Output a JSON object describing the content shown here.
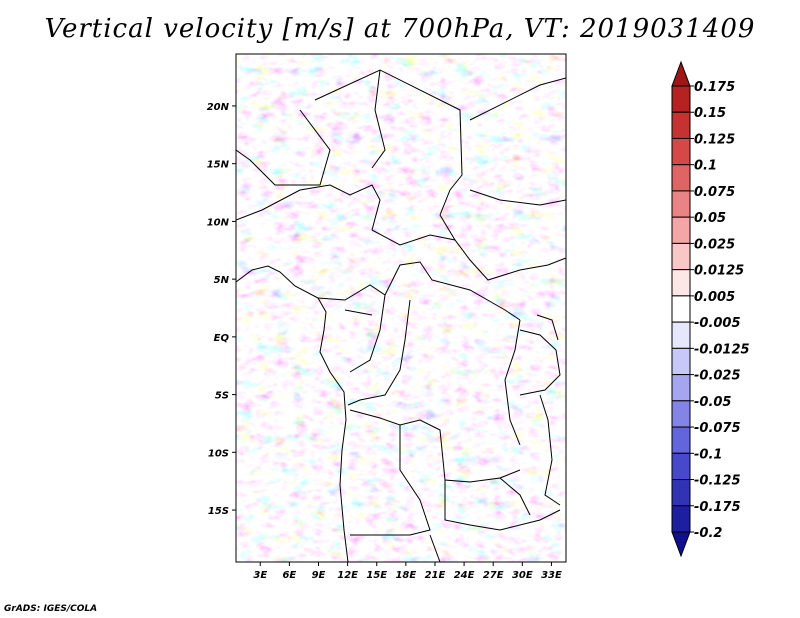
{
  "title": "Vertical velocity [m/s] at 700hPa, VT: 2019031409",
  "credit": "GrADS: IGES/COLA",
  "map": {
    "lat_labels": [
      "20N",
      "15N",
      "10N",
      "5N",
      "EQ",
      "5S",
      "10S",
      "15S"
    ],
    "lat_values": [
      20,
      15,
      10,
      5,
      0,
      -5,
      -10,
      -15
    ],
    "lon_labels": [
      "3E",
      "6E",
      "9E",
      "12E",
      "15E",
      "18E",
      "21E",
      "24E",
      "27E",
      "30E",
      "33E"
    ],
    "lon_values": [
      3,
      6,
      9,
      12,
      15,
      18,
      21,
      24,
      27,
      30,
      33
    ],
    "lon_range": [
      0.5,
      34.5
    ],
    "lat_range": [
      -19.5,
      24.5
    ]
  },
  "colorbar": {
    "labels": [
      "0.175",
      "0.15",
      "0.125",
      "0.1",
      "0.075",
      "0.05",
      "0.025",
      "0.0125",
      "0.005",
      "-0.005",
      "-0.0125",
      "-0.025",
      "-0.05",
      "-0.075",
      "-0.1",
      "-0.125",
      "-0.175",
      "-0.2"
    ],
    "colors": [
      "#a01616",
      "#b42222",
      "#c43232",
      "#d44848",
      "#e06464",
      "#ea8484",
      "#f2a6a6",
      "#f8c8c8",
      "#fde6e6",
      "#ffffff",
      "#e6e6fc",
      "#c8c8f8",
      "#a6a6f0",
      "#8484e6",
      "#6464dc",
      "#4848cc",
      "#3232b4",
      "#1e1ea0",
      "#10108c"
    ]
  }
}
